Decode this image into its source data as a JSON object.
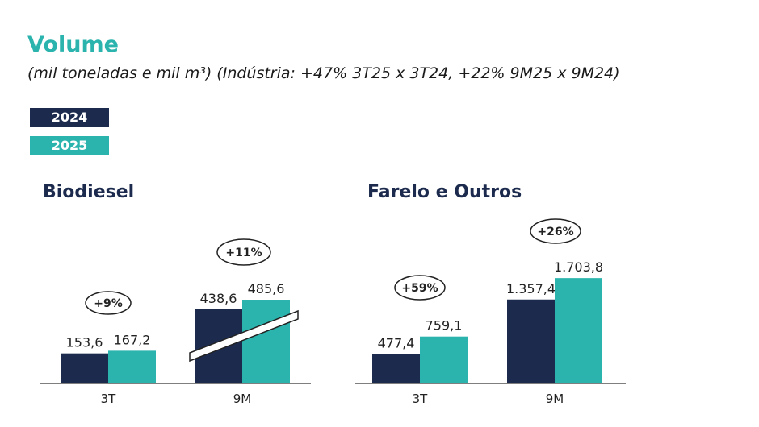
{
  "title": "Volume",
  "subtitle": "(mil toneladas e mil m³) (Indústria: +47% 3T25 x 3T24, +22% 9M25 x 9M24)",
  "colors": {
    "2024": "#1c2a4d",
    "2025": "#2bb3ad",
    "title": "#2bb3ad"
  },
  "chart_data": [
    {
      "type": "bar",
      "title": "Biodiesel",
      "categories": [
        "3T",
        "9M"
      ],
      "axis_break": true,
      "series": [
        {
          "name": "2024",
          "values": [
            153.6,
            438.6
          ],
          "labels": [
            "153,6",
            "438,6"
          ]
        },
        {
          "name": "2025",
          "values": [
            167.2,
            485.6
          ],
          "labels": [
            "167,2",
            "485,6"
          ]
        }
      ],
      "growth": [
        "+9%",
        "+11%"
      ],
      "legend": [
        "2024",
        "2025"
      ],
      "legend_position": "top-left"
    },
    {
      "type": "bar",
      "title": "Farelo e Outros",
      "categories": [
        "3T",
        "9M"
      ],
      "axis_break": false,
      "series": [
        {
          "name": "2024",
          "values": [
            477.4,
            1357.4
          ],
          "labels": [
            "477,4",
            "1.357,4"
          ]
        },
        {
          "name": "2025",
          "values": [
            759.1,
            1703.8
          ],
          "labels": [
            "759,1",
            "1.703,8"
          ]
        }
      ],
      "growth": [
        "+59%",
        "+26%"
      ]
    }
  ]
}
